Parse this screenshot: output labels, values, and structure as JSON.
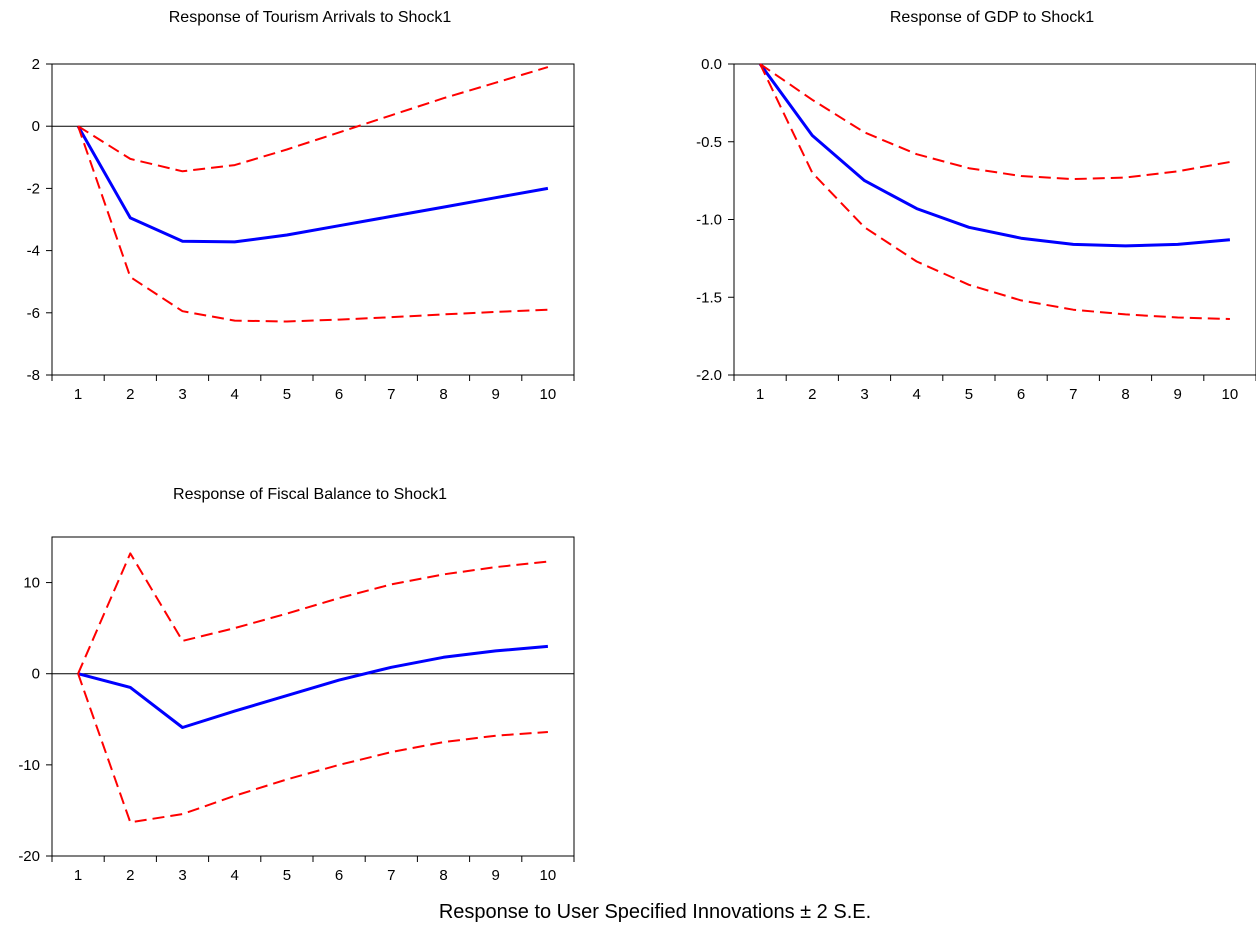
{
  "caption": "Response to User Specified Innovations ± 2 S.E.",
  "colors": {
    "response": "#0000ff",
    "bands": "#ff0000",
    "axis": "#000000"
  },
  "chart_data": [
    {
      "type": "line",
      "title": "Response of Tourism Arrivals to Shock1",
      "x": [
        1,
        2,
        3,
        4,
        5,
        6,
        7,
        8,
        9,
        10
      ],
      "ylim": [
        -8,
        2
      ],
      "yticks": [
        2,
        0,
        -2,
        -4,
        -6,
        -8
      ],
      "ytick_labels": [
        "2",
        "0",
        "-2",
        "-4",
        "-6",
        "-8"
      ],
      "zero_line": true,
      "series": [
        {
          "role": "response",
          "style": "solid",
          "values": [
            0.0,
            -2.95,
            -3.7,
            -3.72,
            -3.5,
            -3.2,
            -2.9,
            -2.6,
            -2.3,
            -2.0
          ]
        },
        {
          "role": "upper",
          "style": "dashed",
          "values": [
            0.0,
            -1.05,
            -1.45,
            -1.25,
            -0.75,
            -0.2,
            0.35,
            0.9,
            1.4,
            1.9
          ]
        },
        {
          "role": "lower",
          "style": "dashed",
          "values": [
            0.0,
            -4.85,
            -5.95,
            -6.25,
            -6.28,
            -6.22,
            -6.14,
            -6.05,
            -5.97,
            -5.9
          ]
        }
      ]
    },
    {
      "type": "line",
      "title": "Response of GDP to Shock1",
      "x": [
        1,
        2,
        3,
        4,
        5,
        6,
        7,
        8,
        9,
        10
      ],
      "ylim": [
        -2.0,
        0.0
      ],
      "yticks": [
        0.0,
        -0.5,
        -1.0,
        -1.5,
        -2.0
      ],
      "ytick_labels": [
        "0.0",
        "-0.5",
        "-1.0",
        "-1.5",
        "-2.0"
      ],
      "zero_line": false,
      "series": [
        {
          "role": "response",
          "style": "solid",
          "values": [
            0.0,
            -0.46,
            -0.75,
            -0.93,
            -1.05,
            -1.12,
            -1.16,
            -1.17,
            -1.16,
            -1.13
          ]
        },
        {
          "role": "upper",
          "style": "dashed",
          "values": [
            0.0,
            -0.23,
            -0.44,
            -0.58,
            -0.67,
            -0.72,
            -0.74,
            -0.73,
            -0.69,
            -0.63
          ]
        },
        {
          "role": "lower",
          "style": "dashed",
          "values": [
            0.0,
            -0.7,
            -1.05,
            -1.27,
            -1.42,
            -1.52,
            -1.58,
            -1.61,
            -1.63,
            -1.64
          ]
        }
      ]
    },
    {
      "type": "line",
      "title": "Response of Fiscal Balance to Shock1",
      "x": [
        1,
        2,
        3,
        4,
        5,
        6,
        7,
        8,
        9,
        10
      ],
      "ylim": [
        -20,
        15
      ],
      "yticks": [
        10,
        0,
        -10,
        -20
      ],
      "ytick_labels": [
        "10",
        "0",
        "-10",
        "-20"
      ],
      "zero_line": true,
      "series": [
        {
          "role": "response",
          "style": "solid",
          "values": [
            0.0,
            -1.5,
            -5.9,
            -4.1,
            -2.4,
            -0.7,
            0.7,
            1.8,
            2.5,
            3.0
          ]
        },
        {
          "role": "upper",
          "style": "dashed",
          "values": [
            0.0,
            13.2,
            3.6,
            5.0,
            6.6,
            8.3,
            9.8,
            10.9,
            11.7,
            12.3
          ]
        },
        {
          "role": "lower",
          "style": "dashed",
          "values": [
            0.0,
            -16.3,
            -15.4,
            -13.4,
            -11.6,
            -10.0,
            -8.6,
            -7.5,
            -6.8,
            -6.4
          ]
        }
      ]
    }
  ]
}
